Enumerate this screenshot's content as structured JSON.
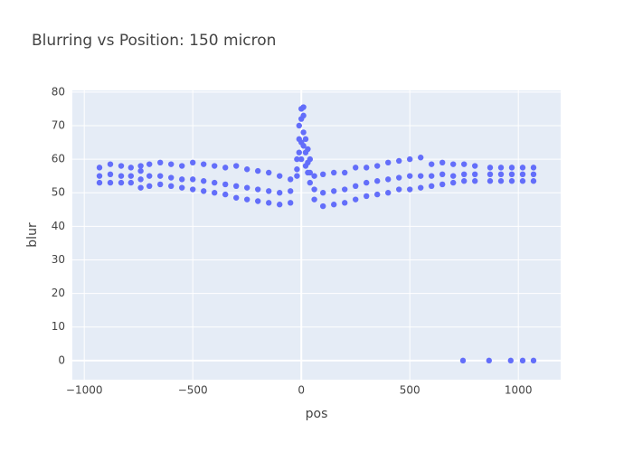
{
  "chart_data": {
    "type": "scatter",
    "title": "Blurring vs Position: 150 micron",
    "x_label": "pos",
    "y_label": "blur",
    "color": "#636efa",
    "x": [
      -930,
      -930,
      -930,
      -880,
      -880,
      -880,
      -830,
      -830,
      -830,
      -785,
      -785,
      -785,
      -740,
      -740,
      -740,
      -740,
      -700,
      -700,
      -700,
      -650,
      -650,
      -650,
      -600,
      -600,
      -600,
      -550,
      -550,
      -550,
      -500,
      -500,
      -500,
      -450,
      -450,
      -450,
      -400,
      -400,
      -400,
      -350,
      -350,
      -350,
      -300,
      -300,
      -300,
      -250,
      -250,
      -250,
      -200,
      -200,
      -200,
      -150,
      -150,
      -150,
      -100,
      -100,
      -100,
      -50,
      -50,
      -50,
      -20,
      -20,
      -20,
      -10,
      -10,
      -10,
      0,
      0,
      0,
      0,
      10,
      10,
      10,
      10,
      20,
      20,
      20,
      30,
      30,
      30,
      40,
      40,
      40,
      60,
      60,
      60,
      100,
      100,
      100,
      150,
      150,
      150,
      200,
      200,
      200,
      250,
      250,
      250,
      300,
      300,
      300,
      350,
      350,
      350,
      400,
      400,
      400,
      450,
      450,
      450,
      500,
      500,
      500,
      550,
      550,
      550,
      600,
      600,
      600,
      650,
      650,
      650,
      700,
      700,
      700,
      750,
      750,
      750,
      800,
      800,
      800,
      870,
      870,
      870,
      920,
      920,
      920,
      970,
      970,
      970,
      1020,
      1020,
      1020,
      1070,
      1070,
      1070,
      745,
      865,
      965,
      1020,
      1070
    ],
    "values": [
      53,
      55,
      57.5,
      53,
      55.5,
      58.5,
      53,
      55,
      58,
      53,
      55,
      57.5,
      51.5,
      54,
      56.5,
      58,
      52,
      55,
      58.5,
      52.5,
      55,
      59,
      52,
      54.5,
      58.5,
      51.5,
      54,
      58,
      51,
      54,
      59,
      50.5,
      53.5,
      58.5,
      50,
      53,
      58,
      49.5,
      52.5,
      57.5,
      48.5,
      52,
      58,
      48,
      51.5,
      57,
      47.5,
      51,
      56.5,
      47,
      50.5,
      56,
      46.5,
      50,
      55,
      47,
      50.5,
      54,
      55,
      57,
      60,
      62,
      66,
      70,
      60,
      65,
      72,
      75,
      64,
      68,
      73,
      75.5,
      58,
      62,
      66,
      56,
      59,
      63,
      53,
      56,
      60,
      48,
      51,
      55,
      46,
      50,
      55.5,
      46.5,
      50.5,
      56,
      47,
      51,
      56,
      48,
      52,
      57.5,
      49,
      53,
      57.5,
      49.5,
      53.5,
      58,
      50,
      54,
      59,
      51,
      54.5,
      59.5,
      51,
      55,
      60,
      51.5,
      55,
      60.5,
      52,
      55,
      58.5,
      52.5,
      55.5,
      59,
      53,
      55,
      58.5,
      53.5,
      55.5,
      58.5,
      53.5,
      55.5,
      58,
      53.5,
      55.5,
      57.5,
      53.5,
      55.5,
      57.5,
      53.5,
      55.5,
      57.5,
      53.5,
      55.5,
      57.5,
      53.5,
      55.5,
      57.5,
      0,
      0,
      0,
      0,
      0
    ],
    "xlim": [
      -1055,
      1195
    ],
    "ylim": [
      -5.7,
      80.5
    ],
    "xticks": [
      {
        "value": -1000,
        "label": "−1000"
      },
      {
        "value": -500,
        "label": "−500"
      },
      0,
      500,
      1000
    ],
    "yticks": [
      0,
      10,
      20,
      30,
      40,
      50,
      60,
      70,
      80
    ],
    "grid": true
  }
}
